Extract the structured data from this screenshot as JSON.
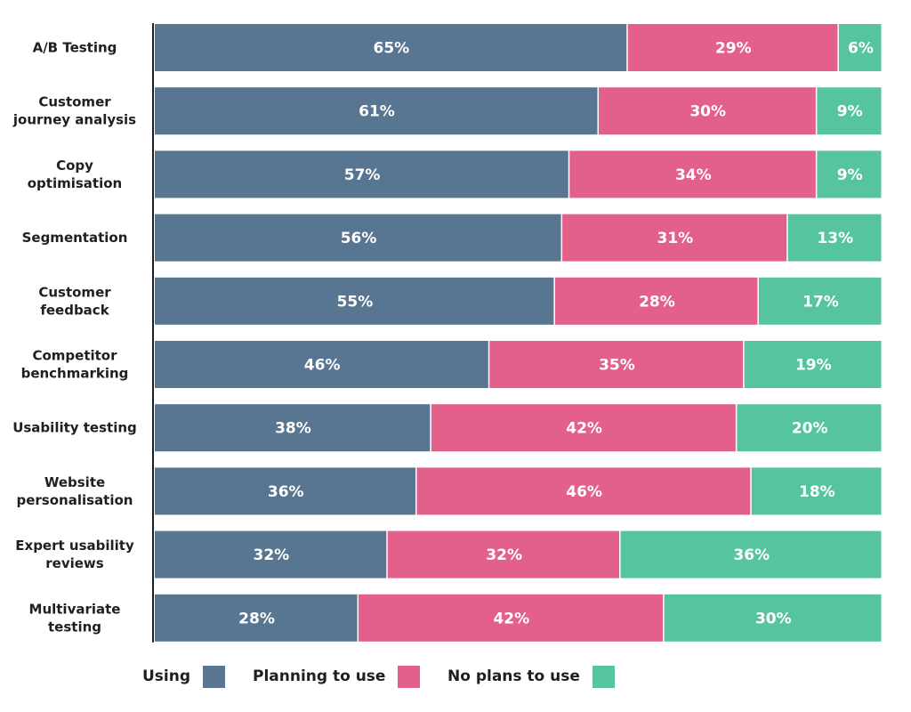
{
  "chart_data": {
    "type": "bar",
    "orientation": "horizontal",
    "stacked": true,
    "title": "",
    "xlabel": "",
    "ylabel": "",
    "xlim": [
      0,
      100
    ],
    "grid": false,
    "legend_position": "bottom",
    "categories": [
      "A/B Testing",
      "Customer journey analysis",
      "Copy optimisation",
      "Segmentation",
      "Customer feedback",
      "Competitor benchmarking",
      "Usability testing",
      "Website personalisation",
      "Expert usability reviews",
      "Multivariate testing"
    ],
    "category_lines": [
      [
        "A/B Testing"
      ],
      [
        "Customer",
        "journey analysis"
      ],
      [
        "Copy",
        "optimisation"
      ],
      [
        "Segmentation"
      ],
      [
        "Customer",
        "feedback"
      ],
      [
        "Competitor",
        "benchmarking"
      ],
      [
        "Usability testing"
      ],
      [
        "Website",
        "personalisation"
      ],
      [
        "Expert usability",
        "reviews"
      ],
      [
        "Multivariate",
        "testing"
      ]
    ],
    "series": [
      {
        "name": "Using",
        "color": "#587591",
        "values": [
          65,
          61,
          57,
          56,
          55,
          46,
          38,
          36,
          32,
          28
        ],
        "labels": [
          "65%",
          "61%",
          "57%",
          "56%",
          "55%",
          "46%",
          "38%",
          "36%",
          "32%",
          "28%"
        ]
      },
      {
        "name": "Planning to use",
        "color": "#e3608b",
        "values": [
          29,
          30,
          34,
          31,
          28,
          35,
          42,
          46,
          32,
          42
        ],
        "labels": [
          "29%",
          "30%",
          "34%",
          "31%",
          "28%",
          "35%",
          "42%",
          "46%",
          "32%",
          "42%"
        ]
      },
      {
        "name": "No plans to use",
        "color": "#56c49c",
        "values": [
          6,
          9,
          9,
          13,
          17,
          19,
          20,
          18,
          36,
          30
        ],
        "labels": [
          "6%",
          "9%",
          "9%",
          "13%",
          "17%",
          "19%",
          "20%",
          "18%",
          "36%",
          "30%"
        ]
      }
    ]
  },
  "legend": {
    "items": [
      {
        "label": "Using",
        "color": "#587591"
      },
      {
        "label": "Planning to use",
        "color": "#e3608b"
      },
      {
        "label": "No plans to use",
        "color": "#56c49c"
      }
    ]
  }
}
